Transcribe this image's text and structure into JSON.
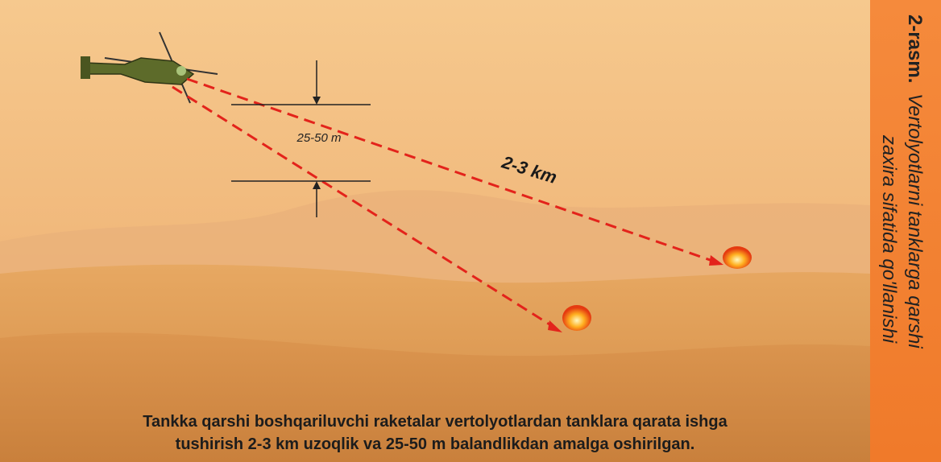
{
  "annotations": {
    "height": "25-50 m",
    "distance": "2-3 km"
  },
  "caption": {
    "lines": [
      "Tankka qarshi boshqariluvchi raketalar vertolyotlardan tanklara qarata ishga",
      "tushirish 2-3 km uzoqlik va 25-50 m balandlikdan amalga oshirilgan."
    ]
  },
  "sidebar": {
    "label": "2-rasm.",
    "title_lines": [
      "Vertolyotlarni tanklarga qarshi",
      "zaxira sifatida qo'llanishi"
    ]
  }
}
